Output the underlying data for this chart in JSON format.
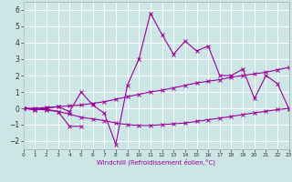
{
  "xlabel": "Windchill (Refroidissement éolien,°C)",
  "background_color": "#cce5e5",
  "grid_color": "#ffffff",
  "line_color": "#990099",
  "x_data": [
    0,
    1,
    2,
    3,
    4,
    5,
    6,
    7,
    8,
    9,
    10,
    11,
    12,
    13,
    14,
    15,
    16,
    17,
    18,
    19,
    20,
    21,
    22,
    23
  ],
  "series1": [
    0.0,
    -0.1,
    0.0,
    0.1,
    -0.2,
    1.0,
    0.2,
    -0.3,
    -2.2,
    1.4,
    3.0,
    5.8,
    4.5,
    3.3,
    4.1,
    3.5,
    3.8,
    2.0,
    2.0,
    2.4,
    0.6,
    2.0,
    1.5,
    -0.05
  ],
  "series2": [
    0.0,
    0.0,
    0.05,
    0.1,
    0.15,
    0.2,
    0.3,
    0.4,
    0.55,
    0.7,
    0.85,
    1.0,
    1.1,
    1.25,
    1.4,
    1.55,
    1.65,
    1.75,
    1.9,
    2.0,
    2.1,
    2.2,
    2.35,
    2.5
  ],
  "series3": [
    0.0,
    -0.05,
    -0.1,
    -0.2,
    -0.35,
    -0.55,
    -0.65,
    -0.75,
    -0.9,
    -1.0,
    -1.05,
    -1.05,
    -1.0,
    -0.95,
    -0.9,
    -0.8,
    -0.7,
    -0.6,
    -0.5,
    -0.38,
    -0.28,
    -0.18,
    -0.08,
    0.0
  ],
  "series4x": [
    0,
    1,
    2,
    3,
    4,
    5
  ],
  "series4y": [
    0.0,
    -0.05,
    -0.05,
    -0.2,
    -1.1,
    -1.1
  ],
  "xlim": [
    0,
    23
  ],
  "ylim": [
    -2.5,
    6.5
  ],
  "yticks": [
    -2,
    -1,
    0,
    1,
    2,
    3,
    4,
    5,
    6
  ],
  "xticks": [
    0,
    1,
    2,
    3,
    4,
    5,
    6,
    7,
    8,
    9,
    10,
    11,
    12,
    13,
    14,
    15,
    16,
    17,
    18,
    19,
    20,
    21,
    22,
    23
  ]
}
